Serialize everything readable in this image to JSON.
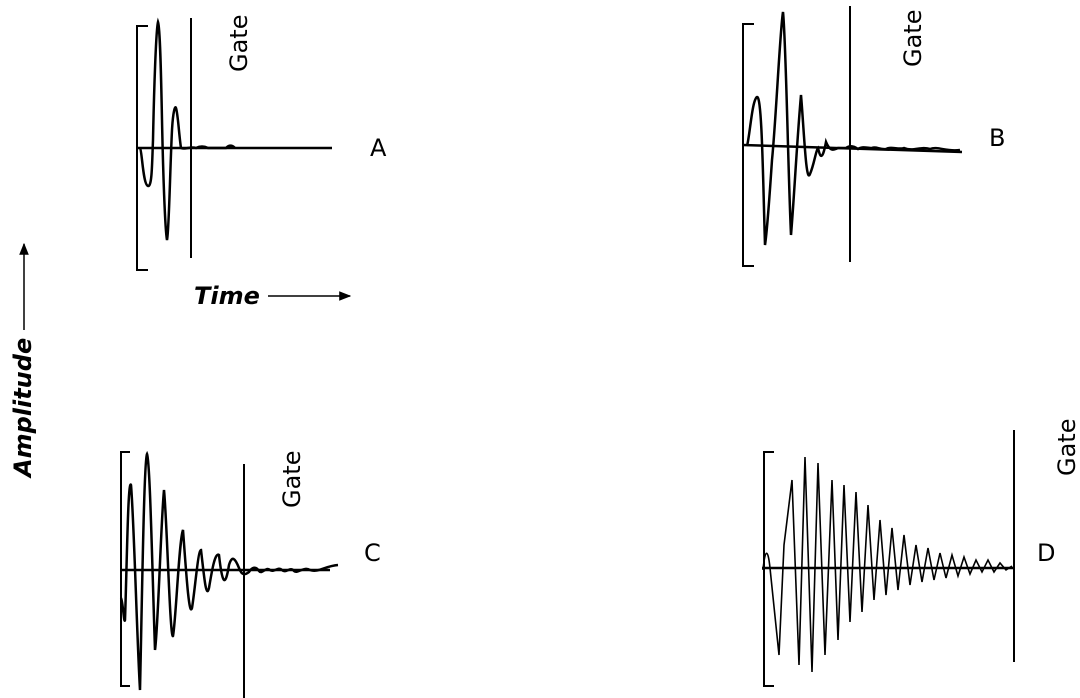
{
  "figure": {
    "amplitude_label": "Amplitude",
    "time_label": "Time",
    "colors": {
      "ink": "#000000",
      "background": "#ffffff"
    },
    "panels": [
      {
        "id": "A",
        "letter": "A",
        "gate_label": "Gate"
      },
      {
        "id": "B",
        "letter": "B",
        "gate_label": "Gate"
      },
      {
        "id": "C",
        "letter": "C",
        "gate_label": "Gate"
      },
      {
        "id": "D",
        "letter": "D",
        "gate_label": "Gate"
      }
    ]
  }
}
